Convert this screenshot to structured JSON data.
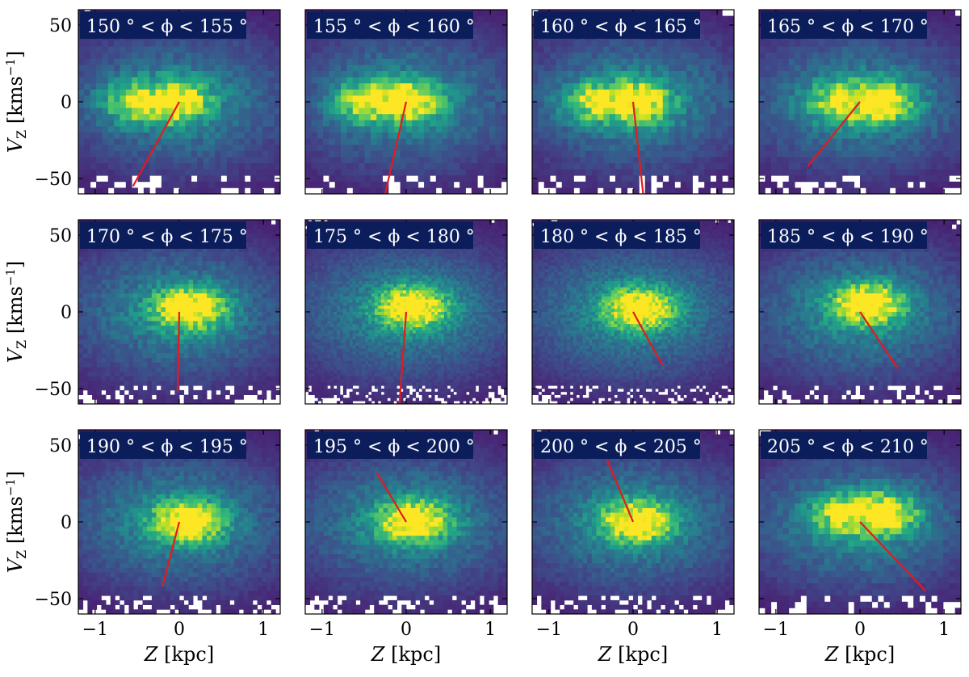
{
  "figure": {
    "colormap": [
      "#440154",
      "#482475",
      "#414487",
      "#355f8d",
      "#2a788e",
      "#21918c",
      "#22a884",
      "#44bf70",
      "#7ad151",
      "#bddf26",
      "#fde725"
    ],
    "fit_line_color": "#e41a1c",
    "label_box_color": "#0b1e5b",
    "label_text_color": "#ffffff"
  },
  "chart_data": {
    "type": "heatmap",
    "layout": "3x4 small multiples",
    "xlabel_symbol": "Z",
    "xlabel_unit": "[kpc]",
    "ylabel_symbol": "V",
    "ylabel_subscript": "Z",
    "ylabel_unit": "[kms",
    "ylabel_unit_exponent": "−1",
    "ylabel_unit_close": "]",
    "xlim": [
      -1.2,
      1.2
    ],
    "ylim": [
      -60,
      60
    ],
    "xticks": [
      -1,
      0,
      1
    ],
    "xtick_labels": [
      "−1",
      "0",
      "1"
    ],
    "yticks": [
      50,
      0,
      -50
    ],
    "ytick_labels": [
      "50",
      "0",
      "−50"
    ],
    "panels": [
      {
        "label": "150 ° < ϕ < 155 °",
        "phi_min": 150,
        "phi_max": 155,
        "density": "sparse",
        "peak": [
          -0.1,
          0
        ],
        "lobes": "double",
        "fit_line": {
          "x": [
            0,
            -0.55
          ],
          "y": [
            0,
            -55
          ]
        }
      },
      {
        "label": "155 ° < ϕ < 160 °",
        "phi_min": 155,
        "phi_max": 160,
        "density": "sparse",
        "peak": [
          -0.05,
          0
        ],
        "lobes": "double",
        "fit_line": {
          "x": [
            0,
            -0.25
          ],
          "y": [
            0,
            -60
          ]
        }
      },
      {
        "label": "160 ° < ϕ < 165 °",
        "phi_min": 160,
        "phi_max": 165,
        "density": "sparse",
        "peak": [
          0.0,
          0
        ],
        "lobes": "double",
        "fit_line": {
          "x": [
            0,
            0.12
          ],
          "y": [
            0,
            -60
          ]
        }
      },
      {
        "label": "165 ° < ϕ < 170 °",
        "phi_min": 165,
        "phi_max": 170,
        "density": "sparse",
        "peak": [
          0.2,
          0
        ],
        "lobes": "double",
        "fit_line": {
          "x": [
            0,
            -0.62
          ],
          "y": [
            0,
            -42
          ]
        }
      },
      {
        "label": "170 ° < ϕ < 175 °",
        "phi_min": 170,
        "phi_max": 175,
        "density": "medium",
        "peak": [
          0.12,
          2
        ],
        "lobes": "single",
        "fit_line": {
          "x": [
            0,
            -0.02
          ],
          "y": [
            0,
            -52
          ]
        }
      },
      {
        "label": "175 ° < ϕ < 180 °",
        "phi_min": 175,
        "phi_max": 180,
        "density": "fine",
        "peak": [
          0.08,
          3
        ],
        "lobes": "single",
        "fit_line": {
          "x": [
            0,
            -0.08
          ],
          "y": [
            0,
            -60
          ]
        }
      },
      {
        "label": "180 ° < ϕ < 185 °",
        "phi_min": 180,
        "phi_max": 185,
        "density": "fine",
        "peak": [
          0.08,
          2
        ],
        "lobes": "single",
        "fit_line": {
          "x": [
            0,
            0.35
          ],
          "y": [
            0,
            -35
          ]
        }
      },
      {
        "label": "185 ° < ϕ < 190 °",
        "phi_min": 185,
        "phi_max": 190,
        "density": "medium",
        "peak": [
          0.1,
          5
        ],
        "lobes": "single",
        "fit_line": {
          "x": [
            0,
            0.45
          ],
          "y": [
            0,
            -37
          ]
        }
      },
      {
        "label": "190 ° < ϕ < 195 °",
        "phi_min": 190,
        "phi_max": 195,
        "density": "medium",
        "peak": [
          0.1,
          0
        ],
        "lobes": "single",
        "fit_line": {
          "x": [
            0,
            -0.2
          ],
          "y": [
            0,
            -42
          ]
        }
      },
      {
        "label": "195 ° < ϕ < 200 °",
        "phi_min": 195,
        "phi_max": 200,
        "density": "medium",
        "peak": [
          0.1,
          0
        ],
        "lobes": "single",
        "fit_line": {
          "x": [
            0,
            -0.35
          ],
          "y": [
            0,
            32
          ]
        }
      },
      {
        "label": "200 ° < ϕ < 205 °",
        "phi_min": 200,
        "phi_max": 205,
        "density": "medium",
        "peak": [
          0.05,
          0
        ],
        "lobes": "single",
        "fit_line": {
          "x": [
            0,
            -0.32
          ],
          "y": [
            0,
            42
          ]
        }
      },
      {
        "label": "205 ° < ϕ < 210 °",
        "phi_min": 205,
        "phi_max": 210,
        "density": "sparse",
        "peak": [
          0.25,
          5
        ],
        "lobes": "double",
        "fit_line": {
          "x": [
            0,
            0.78
          ],
          "y": [
            0,
            -45
          ]
        }
      }
    ]
  }
}
